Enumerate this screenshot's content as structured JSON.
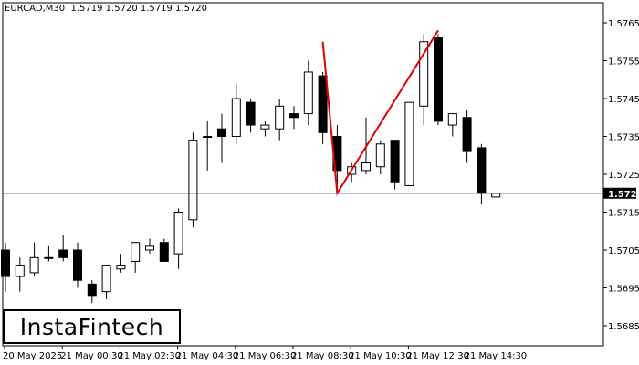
{
  "header": {
    "symbol": "EURCAD,M30",
    "ohlc": "1.5719 1.5720 1.5719 1.5720"
  },
  "logo_text": "InstaFintech",
  "colors": {
    "bull_fill": "#ffffff",
    "bear_fill": "#000000",
    "pattern_line": "#e00000",
    "price_line": "#000000",
    "price_tag_bg": "#000000",
    "price_tag_text": "#ffffff"
  },
  "chart_data": {
    "type": "candlestick",
    "ylim": [
      1.568,
      1.577
    ],
    "y_ticks": [
      "1.5765",
      "1.5755",
      "1.5745",
      "1.5735",
      "1.5725",
      "1.5715",
      "1.5705",
      "1.5695",
      "1.5685"
    ],
    "x_ticks": [
      "20 May 2025",
      "21 May 00:30",
      "21 May 02:30",
      "21 May 04:30",
      "21 May 06:30",
      "21 May 08:30",
      "21 May 10:30",
      "21 May 12:30",
      "21 May 14:30"
    ],
    "current_price": "1.5720",
    "candles": [
      {
        "o": 1.5705,
        "h": 1.5707,
        "l": 1.5694,
        "c": 1.5698
      },
      {
        "o": 1.5698,
        "h": 1.5703,
        "l": 1.5694,
        "c": 1.5701
      },
      {
        "o": 1.5699,
        "h": 1.5707,
        "l": 1.5698,
        "c": 1.5703
      },
      {
        "o": 1.5703,
        "h": 1.5706,
        "l": 1.5702,
        "c": 1.5703
      },
      {
        "o": 1.5705,
        "h": 1.5709,
        "l": 1.5702,
        "c": 1.5703
      },
      {
        "o": 1.5705,
        "h": 1.5707,
        "l": 1.5695,
        "c": 1.5697
      },
      {
        "o": 1.5696,
        "h": 1.5697,
        "l": 1.5691,
        "c": 1.5693
      },
      {
        "o": 1.5694,
        "h": 1.5701,
        "l": 1.5692,
        "c": 1.5701
      },
      {
        "o": 1.57,
        "h": 1.5704,
        "l": 1.5699,
        "c": 1.5701
      },
      {
        "o": 1.5702,
        "h": 1.5707,
        "l": 1.5699,
        "c": 1.5707
      },
      {
        "o": 1.5705,
        "h": 1.5708,
        "l": 1.5704,
        "c": 1.5706
      },
      {
        "o": 1.5707,
        "h": 1.5708,
        "l": 1.5702,
        "c": 1.5702
      },
      {
        "o": 1.5704,
        "h": 1.5716,
        "l": 1.57,
        "c": 1.5715
      },
      {
        "o": 1.5713,
        "h": 1.5736,
        "l": 1.5711,
        "c": 1.5734
      },
      {
        "o": 1.5735,
        "h": 1.5739,
        "l": 1.5726,
        "c": 1.5735
      },
      {
        "o": 1.5737,
        "h": 1.5741,
        "l": 1.5728,
        "c": 1.5735
      },
      {
        "o": 1.5735,
        "h": 1.5749,
        "l": 1.5733,
        "c": 1.5745
      },
      {
        "o": 1.5744,
        "h": 1.5745,
        "l": 1.5736,
        "c": 1.5738
      },
      {
        "o": 1.5737,
        "h": 1.5739,
        "l": 1.5735,
        "c": 1.5738
      },
      {
        "o": 1.5737,
        "h": 1.5745,
        "l": 1.5734,
        "c": 1.5743
      },
      {
        "o": 1.5741,
        "h": 1.5743,
        "l": 1.5737,
        "c": 1.574
      },
      {
        "o": 1.5741,
        "h": 1.5755,
        "l": 1.5738,
        "c": 1.5752
      },
      {
        "o": 1.5751,
        "h": 1.5752,
        "l": 1.5733,
        "c": 1.5736
      },
      {
        "o": 1.5735,
        "h": 1.5738,
        "l": 1.5721,
        "c": 1.5726
      },
      {
        "o": 1.5725,
        "h": 1.5728,
        "l": 1.5723,
        "c": 1.5727
      },
      {
        "o": 1.5726,
        "h": 1.574,
        "l": 1.5725,
        "c": 1.5728
      },
      {
        "o": 1.5727,
        "h": 1.5734,
        "l": 1.5725,
        "c": 1.5733
      },
      {
        "o": 1.5734,
        "h": 1.5734,
        "l": 1.5721,
        "c": 1.5723
      },
      {
        "o": 1.5722,
        "h": 1.5744,
        "l": 1.5722,
        "c": 1.5744
      },
      {
        "o": 1.5743,
        "h": 1.5762,
        "l": 1.5738,
        "c": 1.576
      },
      {
        "o": 1.5761,
        "h": 1.5762,
        "l": 1.5738,
        "c": 1.5739
      },
      {
        "o": 1.5738,
        "h": 1.5741,
        "l": 1.5735,
        "c": 1.5741
      },
      {
        "o": 1.574,
        "h": 1.5742,
        "l": 1.5728,
        "c": 1.5731
      },
      {
        "o": 1.5732,
        "h": 1.5733,
        "l": 1.5717,
        "c": 1.572
      },
      {
        "o": 1.5719,
        "h": 1.572,
        "l": 1.5719,
        "c": 1.572
      }
    ],
    "pattern_line": [
      {
        "candle": 22,
        "price": 1.576
      },
      {
        "candle": 23,
        "price": 1.572
      },
      {
        "candle": 30,
        "price": 1.5763
      }
    ],
    "grid": false,
    "legend": "none"
  }
}
